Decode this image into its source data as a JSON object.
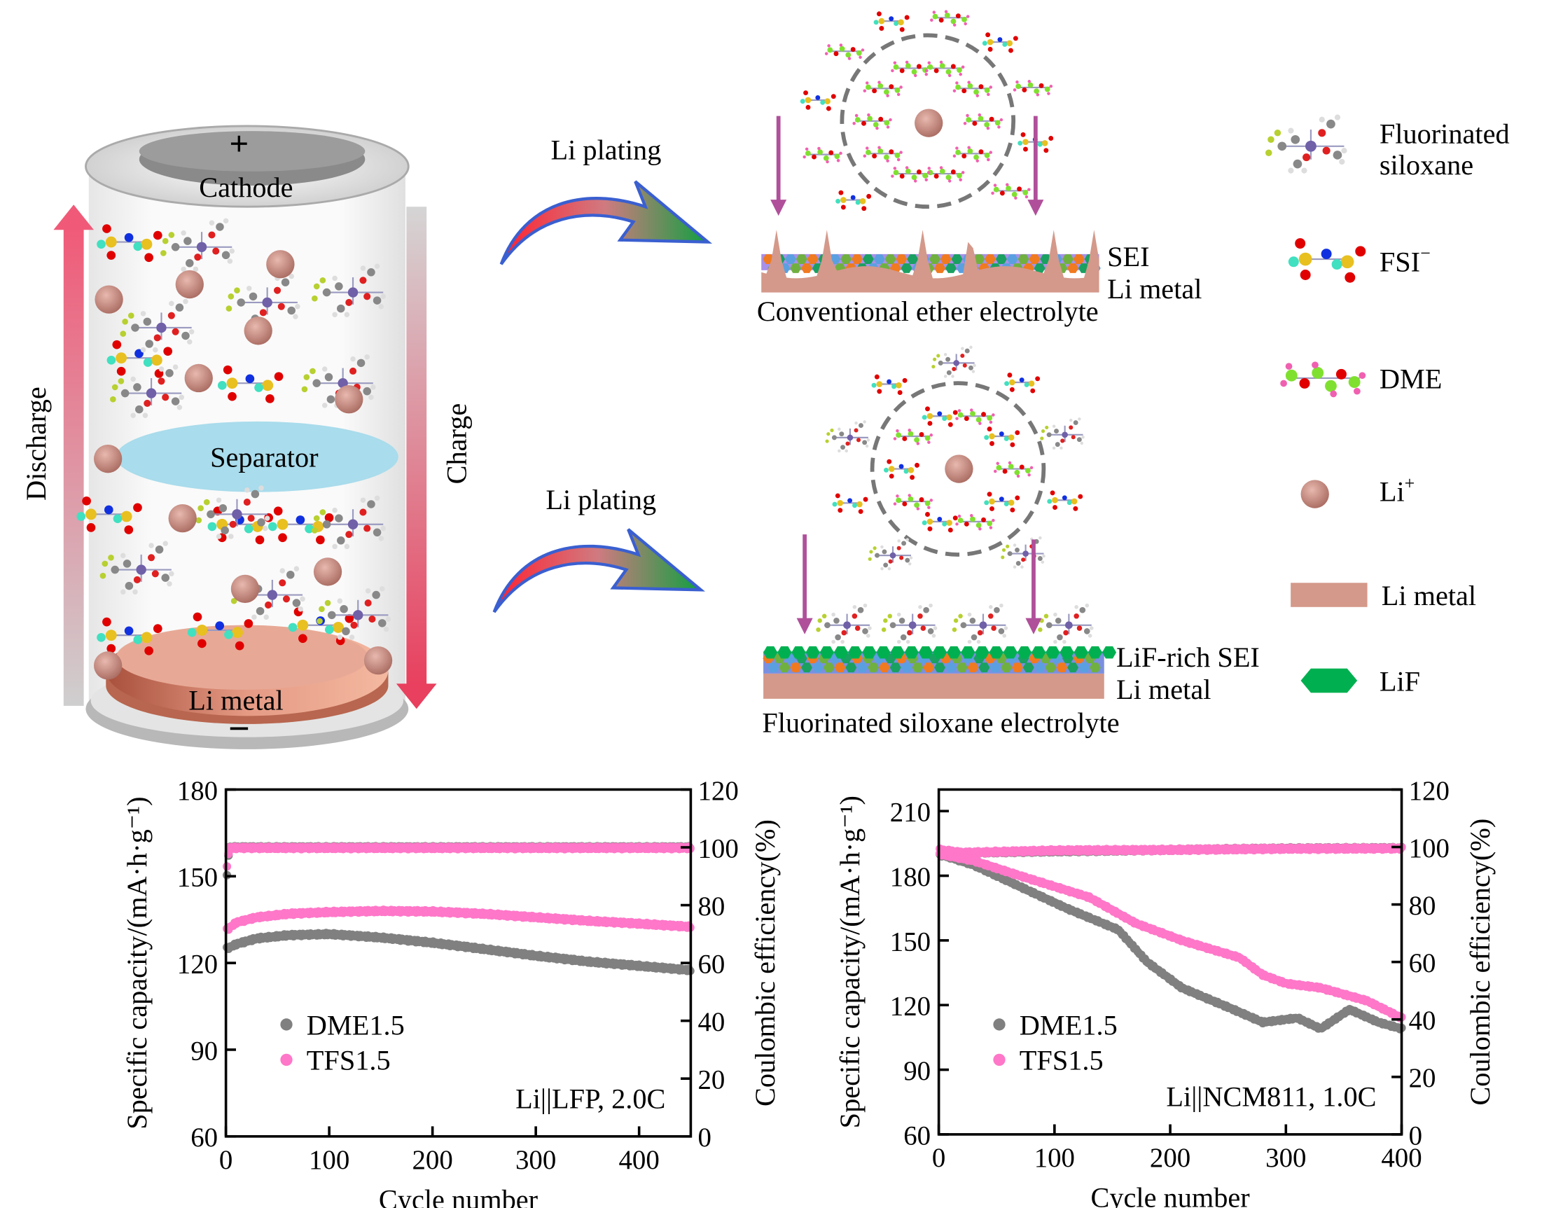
{
  "schematic": {
    "cathode_label": "Cathode",
    "plus_sign": "+",
    "minus_sign": "−",
    "separator_label": "Separator",
    "anode_label": "Li metal",
    "discharge_label": "Discharge",
    "charge_label": "Charge",
    "plating_top_label": "Li plating",
    "plating_bottom_label": "Li plating",
    "top_panel": {
      "sei_label": "SEI",
      "metal_label": "Li metal",
      "caption": "Conventional ether electrolyte"
    },
    "bottom_panel": {
      "sei_label": "LiF-rich SEI",
      "metal_label": "Li metal",
      "caption": "Fluorinated siloxane electrolyte"
    },
    "colors": {
      "li_metal": "#d4998a",
      "lif": "#00b050",
      "separator": "#a9dcec",
      "arrow_purple": "#b0509a",
      "li_ion": "#c98a80"
    }
  },
  "legend": {
    "items": [
      {
        "label_line1": "Fluorinated",
        "label_line2": "siloxane",
        "icon": "fluorinated-siloxane-molecule-icon"
      },
      {
        "label": "FSI",
        "sup": "−",
        "icon": "fsi-anion-molecule-icon"
      },
      {
        "label": "DME",
        "icon": "dme-molecule-icon"
      },
      {
        "label": "Li",
        "sup": "+",
        "icon": "li-ion-sphere-icon"
      },
      {
        "label": "Li metal",
        "icon": "li-metal-swatch-icon"
      },
      {
        "label": "LiF",
        "icon": "lif-hexagon-icon"
      }
    ]
  },
  "chart_data": [
    {
      "type": "scatter",
      "annotation": "Li||LFP, 2.0C",
      "xlabel": "Cycle number",
      "ylabel": "Specific capacity/(mA·h·g⁻¹)",
      "y2label": "Coulombic efficiency(%)",
      "xlim": [
        0,
        450
      ],
      "ylim": [
        60,
        180
      ],
      "y2lim": [
        0,
        120
      ],
      "xticks": [
        0,
        100,
        200,
        300,
        400
      ],
      "yticks": [
        60,
        90,
        120,
        150,
        180
      ],
      "y2ticks": [
        0,
        20,
        40,
        60,
        80,
        100,
        120
      ],
      "legend_placement": "center-left",
      "series": [
        {
          "name": "DME1.5",
          "color": "#808080",
          "kind": "capacity",
          "points": [
            [
              1,
              125
            ],
            [
              10,
              126.5
            ],
            [
              30,
              128.5
            ],
            [
              60,
              129.6
            ],
            [
              100,
              130
            ],
            [
              150,
              128.8
            ],
            [
              200,
              127
            ],
            [
              250,
              124.8
            ],
            [
              300,
              122.5
            ],
            [
              350,
              120.5
            ],
            [
              400,
              119
            ],
            [
              450,
              117.5
            ]
          ]
        },
        {
          "name": "TFS1.5",
          "color": "#ff77c8",
          "kind": "capacity",
          "points": [
            [
              1,
              131.5
            ],
            [
              10,
              134
            ],
            [
              30,
              135.8
            ],
            [
              60,
              137
            ],
            [
              100,
              137.6
            ],
            [
              150,
              138
            ],
            [
              200,
              137.8
            ],
            [
              250,
              137
            ],
            [
              300,
              135.8
            ],
            [
              350,
              134.6
            ],
            [
              400,
              133.6
            ],
            [
              450,
              132.5
            ]
          ]
        },
        {
          "name": "DME1.5",
          "color": "#808080",
          "kind": "coulombic_efficiency",
          "points": [
            [
              1,
              90
            ],
            [
              3,
              100
            ],
            [
              450,
              100
            ]
          ]
        },
        {
          "name": "TFS1.5",
          "color": "#ff77c8",
          "kind": "coulombic_efficiency",
          "points": [
            [
              1,
              93
            ],
            [
              3,
              99.8
            ],
            [
              450,
              99.8
            ]
          ]
        }
      ]
    },
    {
      "type": "scatter",
      "annotation": "Li||NCM811, 1.0C",
      "xlabel": "Cycle number",
      "ylabel": "Specific capacity/(mA·h·g⁻¹)",
      "y2label": "Coulombic efficiency(%)",
      "xlim": [
        0,
        400
      ],
      "ylim": [
        60,
        220
      ],
      "y2lim": [
        0,
        120
      ],
      "xticks": [
        0,
        100,
        200,
        300,
        400
      ],
      "yticks": [
        60,
        90,
        120,
        150,
        180,
        210
      ],
      "y2ticks": [
        0,
        20,
        40,
        60,
        80,
        100,
        120
      ],
      "legend_placement": "center-left",
      "series": [
        {
          "name": "DME1.5",
          "color": "#808080",
          "kind": "capacity",
          "points": [
            [
              1,
              190
            ],
            [
              30,
              185
            ],
            [
              70,
              175
            ],
            [
              110,
              165
            ],
            [
              155,
              155
            ],
            [
              180,
              140
            ],
            [
              210,
              128
            ],
            [
              250,
              119
            ],
            [
              280,
              112
            ],
            [
              310,
              114
            ],
            [
              330,
              109
            ],
            [
              355,
              118
            ],
            [
              380,
              112
            ],
            [
              400,
              109
            ]
          ]
        },
        {
          "name": "TFS1.5",
          "color": "#ff77c8",
          "kind": "capacity",
          "points": [
            [
              1,
              190
            ],
            [
              30,
              187
            ],
            [
              70,
              180
            ],
            [
              130,
              170
            ],
            [
              170,
              158
            ],
            [
              210,
              150
            ],
            [
              260,
              142
            ],
            [
              280,
              134
            ],
            [
              300,
              130
            ],
            [
              330,
              128
            ],
            [
              370,
              122
            ],
            [
              400,
              114
            ]
          ]
        },
        {
          "name": "DME1.5",
          "color": "#808080",
          "kind": "coulombic_efficiency",
          "points": [
            [
              1,
              97
            ],
            [
              20,
              98
            ],
            [
              100,
              98.5
            ],
            [
              200,
              99
            ],
            [
              300,
              99.5
            ],
            [
              400,
              99.6
            ]
          ]
        },
        {
          "name": "TFS1.5",
          "color": "#ff77c8",
          "kind": "coulombic_efficiency",
          "points": [
            [
              1,
              99
            ],
            [
              20,
              98
            ],
            [
              100,
              98.8
            ],
            [
              200,
              99
            ],
            [
              300,
              99.4
            ],
            [
              400,
              99.5
            ]
          ]
        }
      ]
    }
  ]
}
